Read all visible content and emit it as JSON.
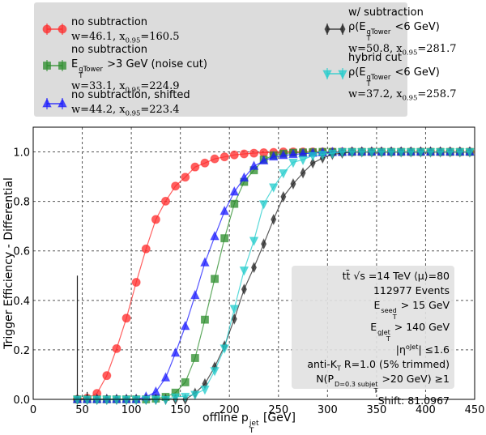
{
  "legend": {
    "entries": [
      {
        "lines": [
          "no subtraction",
          "w=46.1, x_{0.95}=160.5"
        ],
        "color": "#ff2a2a",
        "marker": "circle"
      },
      {
        "lines": [
          "no subtraction",
          "E_{T}^{gTower} >3 GeV (noise cut)",
          "w=33.1, x_{0.95}=224.9"
        ],
        "color": "#2a8c2a",
        "marker": "square"
      },
      {
        "lines": [
          "no subtraction, shifted",
          "w=44.2, x_{0.95}=223.4"
        ],
        "color": "#1a1aff",
        "marker": "triangle-up"
      },
      {
        "lines": [
          "w/ subtraction",
          "ρ(E_{T}^{gTower} <6 GeV)",
          "w=50.8, x_{0.95}=281.7"
        ],
        "color": "#222222",
        "marker": "diamond"
      },
      {
        "lines": [
          "hybrid cut",
          "ρ(E_{T}^{gTower} <6 GeV)",
          "w=37.2, x_{0.95}=258.7"
        ],
        "color": "#22cccc",
        "marker": "triangle-down"
      }
    ]
  },
  "annotation": {
    "lines": [
      "tt̄ √s =14 TeV ⟨μ⟩=80",
      "112977 Events",
      "E_{T}^{seed} > 15 GeV",
      "E_{T}^{gJet} > 140 GeV",
      "|η^{oJet}| ≤1.6",
      "anti-K_{T} R=1.0 (5% trimmed)",
      "N(P_{T}^{D=0.3 subjet} >20 GeV) ≥1",
      "Shift: 81.0967"
    ]
  },
  "chart_data": {
    "type": "line",
    "xlabel": "offline p_{T}^{jet}  [GeV]",
    "ylabel": "Trigger Efficiency - Differential",
    "xlim": [
      0,
      450
    ],
    "ylim": [
      0,
      1.1
    ],
    "xticks": [
      "0",
      "50",
      "100",
      "150",
      "200",
      "250",
      "300",
      "350",
      "400",
      "450"
    ],
    "yticks": [
      "0.0",
      "0.2",
      "0.4",
      "0.6",
      "0.8",
      "1.0"
    ],
    "grid": true,
    "legend_position": "above plot",
    "x": [
      45,
      55,
      65,
      75,
      85,
      95,
      105,
      115,
      125,
      135,
      145,
      155,
      165,
      175,
      185,
      195,
      205,
      215,
      225,
      235,
      245,
      255,
      265,
      275,
      285,
      295,
      305,
      315,
      325,
      335,
      345,
      355,
      365,
      375,
      385,
      395,
      405,
      415,
      425,
      435,
      445
    ],
    "series": [
      {
        "color": "#ff2a2a",
        "marker": "circle",
        "values": [
          0,
          0.005,
          0.024,
          0.096,
          0.205,
          0.328,
          0.473,
          0.608,
          0.727,
          0.801,
          0.862,
          0.898,
          0.939,
          0.955,
          0.972,
          0.98,
          0.988,
          0.992,
          0.995,
          0.997,
          0.998,
          1,
          1,
          1,
          1,
          1,
          1,
          1,
          1,
          1,
          1,
          1,
          1,
          1,
          1,
          1,
          1,
          1,
          1,
          1,
          1
        ]
      },
      {
        "color": "#2a8c2a",
        "marker": "square",
        "values": [
          0,
          0,
          0,
          0,
          0,
          0,
          0,
          0,
          0.003,
          0.01,
          0.027,
          0.069,
          0.167,
          0.322,
          0.487,
          0.651,
          0.79,
          0.879,
          0.926,
          0.969,
          0.986,
          0.993,
          0.997,
          0.998,
          0.999,
          1,
          1,
          1,
          1,
          1,
          1,
          1,
          1,
          1,
          1,
          1,
          1,
          1,
          1,
          1,
          1
        ]
      },
      {
        "color": "#1a1aff",
        "marker": "triangle-up",
        "values": [
          0,
          0,
          0,
          0,
          0,
          0,
          0,
          0.01,
          0.03,
          0.087,
          0.187,
          0.295,
          0.42,
          0.552,
          0.658,
          0.76,
          0.838,
          0.895,
          0.942,
          0.964,
          0.98,
          0.986,
          0.99,
          0.993,
          0.995,
          0.997,
          0.998,
          0.999,
          1,
          1,
          1,
          1,
          1,
          1,
          1,
          1,
          1,
          1,
          1,
          1,
          1
        ]
      },
      {
        "color": "#222222",
        "marker": "diamond",
        "yerr": [
          0.5,
          0.03,
          0,
          0,
          0,
          0,
          0,
          0,
          0,
          0,
          0,
          0,
          0,
          0,
          0,
          0,
          0,
          0,
          0,
          0,
          0,
          0,
          0,
          0,
          0,
          0,
          0,
          0,
          0,
          0,
          0,
          0,
          0,
          0,
          0,
          0,
          0,
          0,
          0,
          0,
          0
        ],
        "values": [
          0,
          0,
          0,
          0,
          0,
          0,
          0,
          0,
          0,
          0,
          0,
          0,
          0.025,
          0.063,
          0.131,
          0.216,
          0.325,
          0.445,
          0.533,
          0.628,
          0.727,
          0.819,
          0.871,
          0.915,
          0.955,
          0.975,
          0.99,
          0.995,
          1,
          1,
          1,
          1,
          1,
          1,
          1,
          1,
          1,
          1,
          1,
          1,
          1
        ]
      },
      {
        "color": "#22cccc",
        "marker": "triangle-down",
        "values": [
          0,
          0,
          0,
          0,
          0,
          0,
          0,
          0,
          0,
          0,
          0.01,
          0.012,
          0.02,
          0.041,
          0.116,
          0.207,
          0.367,
          0.522,
          0.642,
          0.79,
          0.858,
          0.915,
          0.958,
          0.969,
          0.985,
          0.99,
          0.995,
          1,
          1,
          1,
          1,
          1,
          1,
          1,
          1,
          1,
          1,
          1,
          1,
          1,
          1
        ]
      }
    ]
  }
}
